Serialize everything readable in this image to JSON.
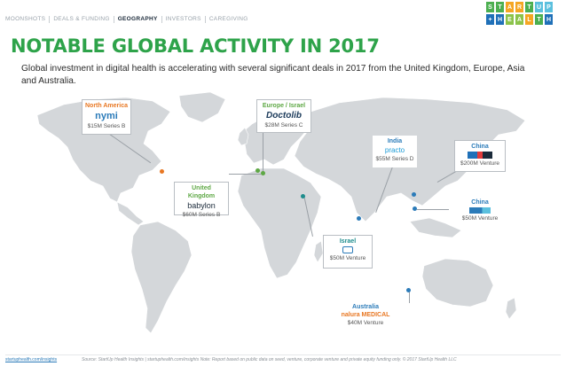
{
  "nav": {
    "tabs": [
      {
        "label": "MOONSHOTS"
      },
      {
        "label": "DEALS & FUNDING"
      },
      {
        "label": "GEOGRAPHY"
      },
      {
        "label": "INVESTORS"
      },
      {
        "label": "CAREGIVING"
      }
    ],
    "active": "GEOGRAPHY"
  },
  "logo": {
    "top": [
      "S",
      "T",
      "A",
      "R",
      "T",
      "U",
      "P"
    ],
    "bottom": [
      "+",
      "H",
      "E",
      "A",
      "L",
      "T",
      "H"
    ]
  },
  "title": "NOTABLE GLOBAL ACTIVITY IN 2017",
  "subtitle": "Global investment in digital health is accelerating with several significant deals in 2017 from the United Kingdom, Europe, Asia and Australia.",
  "deals": {
    "north_america": {
      "region": "North America",
      "company": "nymi",
      "amount": "$15M Series B"
    },
    "europe_israel": {
      "region": "Europe / Israel",
      "company": "Doctolib",
      "amount": "$28M Series C"
    },
    "united_kingdom": {
      "region": "United Kingdom",
      "company": "babylon",
      "amount": "$60M Series B"
    },
    "india": {
      "region": "India",
      "company": "practo",
      "amount": "$55M Series D"
    },
    "china_1": {
      "region": "China",
      "company": "",
      "amount": "$200M Venture"
    },
    "china_2": {
      "region": "China",
      "company": "",
      "amount": "$50M Venture"
    },
    "israel": {
      "region": "Israel",
      "company": "",
      "amount": "$50M Venture"
    },
    "australia": {
      "region": "Australia",
      "company": "nalura MEDICAL",
      "amount": "$40M Venture"
    }
  },
  "footer": {
    "link": "startuphealth.com/insights",
    "source": "Source: StartUp Health Insights | startuphealth.com/insights Note: Report based on public data on seed, venture, corporate venture and private equity funding only. © 2017 StartUp Health LLC"
  },
  "colors": {
    "title_green": "#2ea34a",
    "north_america": "#e87722",
    "europe": "#5ea845",
    "asia": "#2b7bb9",
    "israel": "#1d8c8c"
  }
}
